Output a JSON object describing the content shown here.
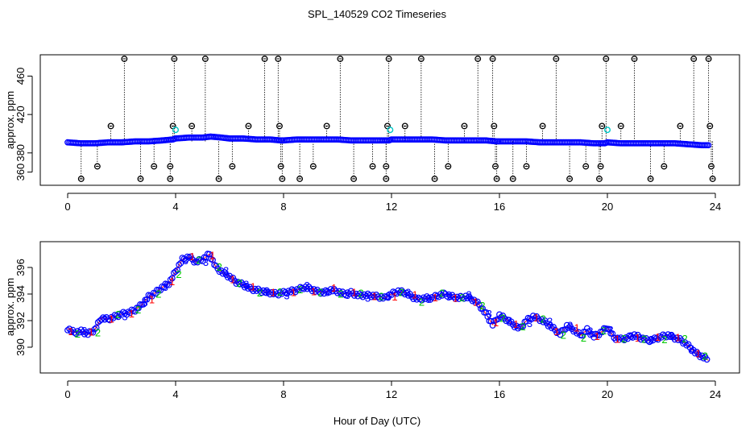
{
  "chart_data": [
    {
      "type": "scatter",
      "title": "SPL_140529  CO2 Timeseries",
      "ylabel": "approx. ppm",
      "xlabel": "",
      "xlim": [
        -1,
        25
      ],
      "ylim": [
        350,
        484
      ],
      "xticks": [
        0,
        4,
        8,
        12,
        16,
        20,
        24
      ],
      "yticks": [
        360,
        380,
        420,
        460
      ],
      "grid": false,
      "colors": {
        "baseline": "#0000ff",
        "outlier": "#000000",
        "flag": "#00c8c8",
        "stem": "#000000"
      },
      "baseline_points": [
        {
          "x": 0.0,
          "y": 391
        },
        {
          "x": 0.5,
          "y": 390
        },
        {
          "x": 1.0,
          "y": 390
        },
        {
          "x": 1.5,
          "y": 391
        },
        {
          "x": 2.0,
          "y": 391
        },
        {
          "x": 2.5,
          "y": 392
        },
        {
          "x": 3.0,
          "y": 392
        },
        {
          "x": 3.5,
          "y": 393
        },
        {
          "x": 3.9,
          "y": 394
        },
        {
          "x": 4.0,
          "y": 395
        },
        {
          "x": 4.5,
          "y": 396
        },
        {
          "x": 5.0,
          "y": 396
        },
        {
          "x": 5.3,
          "y": 397
        },
        {
          "x": 5.7,
          "y": 396
        },
        {
          "x": 6.0,
          "y": 395
        },
        {
          "x": 6.5,
          "y": 395
        },
        {
          "x": 7.0,
          "y": 394
        },
        {
          "x": 7.5,
          "y": 394
        },
        {
          "x": 7.9,
          "y": 393
        },
        {
          "x": 8.0,
          "y": 393
        },
        {
          "x": 8.5,
          "y": 394
        },
        {
          "x": 9.0,
          "y": 394
        },
        {
          "x": 9.5,
          "y": 394
        },
        {
          "x": 10.0,
          "y": 394
        },
        {
          "x": 10.5,
          "y": 393
        },
        {
          "x": 11.0,
          "y": 393
        },
        {
          "x": 11.5,
          "y": 393
        },
        {
          "x": 11.9,
          "y": 393
        },
        {
          "x": 12.0,
          "y": 394
        },
        {
          "x": 12.5,
          "y": 394
        },
        {
          "x": 13.0,
          "y": 394
        },
        {
          "x": 13.5,
          "y": 394
        },
        {
          "x": 14.0,
          "y": 393
        },
        {
          "x": 14.5,
          "y": 393
        },
        {
          "x": 15.0,
          "y": 393
        },
        {
          "x": 15.5,
          "y": 393
        },
        {
          "x": 15.9,
          "y": 392
        },
        {
          "x": 16.0,
          "y": 392
        },
        {
          "x": 16.5,
          "y": 392
        },
        {
          "x": 17.0,
          "y": 392
        },
        {
          "x": 17.5,
          "y": 391
        },
        {
          "x": 18.0,
          "y": 391
        },
        {
          "x": 18.5,
          "y": 391
        },
        {
          "x": 19.0,
          "y": 391
        },
        {
          "x": 19.5,
          "y": 390
        },
        {
          "x": 19.9,
          "y": 390
        },
        {
          "x": 20.0,
          "y": 391
        },
        {
          "x": 20.5,
          "y": 390
        },
        {
          "x": 21.0,
          "y": 390
        },
        {
          "x": 21.5,
          "y": 390
        },
        {
          "x": 22.0,
          "y": 390
        },
        {
          "x": 22.5,
          "y": 390
        },
        {
          "x": 23.0,
          "y": 389
        },
        {
          "x": 23.5,
          "y": 388
        },
        {
          "x": 23.8,
          "y": 388
        }
      ],
      "outliers": [
        {
          "x": 0.5,
          "y": 353
        },
        {
          "x": 1.1,
          "y": 366
        },
        {
          "x": 1.6,
          "y": 408
        },
        {
          "x": 2.1,
          "y": 478
        },
        {
          "x": 2.7,
          "y": 353
        },
        {
          "x": 3.2,
          "y": 366
        },
        {
          "x": 3.8,
          "y": 353
        },
        {
          "x": 3.8,
          "y": 366
        },
        {
          "x": 3.9,
          "y": 408
        },
        {
          "x": 3.95,
          "y": 478
        },
        {
          "x": 4.6,
          "y": 408
        },
        {
          "x": 5.1,
          "y": 478
        },
        {
          "x": 5.6,
          "y": 353
        },
        {
          "x": 6.1,
          "y": 366
        },
        {
          "x": 6.7,
          "y": 408
        },
        {
          "x": 7.3,
          "y": 478
        },
        {
          "x": 7.8,
          "y": 478
        },
        {
          "x": 7.85,
          "y": 408
        },
        {
          "x": 7.9,
          "y": 366
        },
        {
          "x": 7.95,
          "y": 353
        },
        {
          "x": 8.6,
          "y": 353
        },
        {
          "x": 9.1,
          "y": 366
        },
        {
          "x": 9.6,
          "y": 408
        },
        {
          "x": 10.1,
          "y": 478
        },
        {
          "x": 10.6,
          "y": 353
        },
        {
          "x": 11.3,
          "y": 366
        },
        {
          "x": 11.8,
          "y": 353
        },
        {
          "x": 11.8,
          "y": 366
        },
        {
          "x": 11.85,
          "y": 408
        },
        {
          "x": 11.9,
          "y": 478
        },
        {
          "x": 12.5,
          "y": 408
        },
        {
          "x": 13.1,
          "y": 478
        },
        {
          "x": 13.6,
          "y": 353
        },
        {
          "x": 14.1,
          "y": 366
        },
        {
          "x": 14.7,
          "y": 408
        },
        {
          "x": 15.2,
          "y": 478
        },
        {
          "x": 15.75,
          "y": 478
        },
        {
          "x": 15.8,
          "y": 408
        },
        {
          "x": 15.85,
          "y": 366
        },
        {
          "x": 15.9,
          "y": 353
        },
        {
          "x": 16.5,
          "y": 353
        },
        {
          "x": 17.0,
          "y": 366
        },
        {
          "x": 17.6,
          "y": 408
        },
        {
          "x": 18.1,
          "y": 478
        },
        {
          "x": 18.6,
          "y": 353
        },
        {
          "x": 19.2,
          "y": 366
        },
        {
          "x": 19.7,
          "y": 353
        },
        {
          "x": 19.75,
          "y": 366
        },
        {
          "x": 19.8,
          "y": 408
        },
        {
          "x": 19.95,
          "y": 478
        },
        {
          "x": 20.5,
          "y": 408
        },
        {
          "x": 21.0,
          "y": 478
        },
        {
          "x": 21.6,
          "y": 353
        },
        {
          "x": 22.1,
          "y": 366
        },
        {
          "x": 22.7,
          "y": 408
        },
        {
          "x": 23.2,
          "y": 478
        },
        {
          "x": 23.75,
          "y": 478
        },
        {
          "x": 23.8,
          "y": 408
        },
        {
          "x": 23.85,
          "y": 366
        },
        {
          "x": 23.9,
          "y": 353
        }
      ],
      "flagged": [
        {
          "x": 4.0,
          "y": 404
        },
        {
          "x": 11.95,
          "y": 404
        },
        {
          "x": 20.0,
          "y": 404
        }
      ]
    },
    {
      "type": "scatter",
      "title": "",
      "ylabel": "approx. ppm",
      "xlabel": "Hour of Day (UTC)",
      "xlim": [
        -1,
        25
      ],
      "ylim": [
        388.5,
        397.6
      ],
      "xticks": [
        0,
        4,
        8,
        12,
        16,
        20,
        24
      ],
      "yticks": [
        390,
        392,
        394,
        396
      ],
      "grid": false,
      "colors": {
        "circles": "#0000ff",
        "line": "#ff0000",
        "digit1": "#ff0000",
        "digit2": "#00c800",
        "digit3": "#0000ff"
      },
      "series": [
        {
          "x": [
            0.0,
            0.25,
            0.5,
            0.75,
            1.0,
            1.25,
            1.5,
            1.75,
            2.0,
            2.25,
            2.5,
            2.75,
            3.0,
            3.25,
            3.5,
            3.75,
            4.0,
            4.25,
            4.5,
            4.75,
            5.0,
            5.25,
            5.5,
            5.75,
            6.0,
            6.25,
            6.5,
            6.75,
            7.0,
            7.25,
            7.5,
            7.75,
            8.0,
            8.25,
            8.5,
            8.75,
            9.0,
            9.25,
            9.5,
            9.75,
            10.0,
            10.25,
            10.5,
            10.75,
            11.0,
            11.25,
            11.5,
            11.75,
            12.0,
            12.25,
            12.5,
            12.75,
            13.0,
            13.25,
            13.5,
            13.75,
            14.0,
            14.25,
            14.5,
            14.75,
            15.0,
            15.25,
            15.5,
            15.75,
            16.0,
            16.25,
            16.5,
            16.75,
            17.0,
            17.25,
            17.5,
            17.75,
            18.0,
            18.25,
            18.5,
            18.75,
            19.0,
            19.25,
            19.5,
            19.75,
            20.0,
            20.25,
            20.5,
            20.75,
            21.0,
            21.25,
            21.5,
            21.75,
            22.0,
            22.25,
            22.5,
            22.75,
            23.0,
            23.25,
            23.5,
            23.75
          ],
          "values": [
            391.4,
            391.1,
            391.2,
            391.0,
            391.3,
            392.2,
            392.1,
            392.3,
            392.5,
            392.6,
            392.8,
            393.2,
            393.8,
            394.1,
            394.5,
            394.8,
            395.7,
            396.6,
            396.8,
            396.4,
            396.6,
            397.0,
            396.0,
            395.6,
            395.3,
            394.9,
            394.7,
            394.4,
            394.3,
            394.2,
            394.1,
            394.0,
            394.1,
            394.2,
            394.3,
            394.5,
            394.4,
            394.2,
            394.1,
            394.3,
            394.2,
            394.0,
            394.1,
            393.9,
            393.9,
            393.9,
            393.8,
            393.7,
            394.0,
            394.2,
            394.1,
            393.8,
            393.6,
            393.7,
            393.7,
            393.9,
            394.0,
            393.8,
            393.7,
            393.8,
            393.6,
            393.2,
            392.5,
            391.7,
            392.4,
            392.1,
            391.7,
            391.4,
            392.0,
            392.3,
            392.1,
            391.8,
            391.4,
            391.0,
            391.6,
            391.3,
            390.9,
            391.3,
            390.8,
            391.1,
            391.5,
            390.7,
            390.6,
            390.7,
            390.9,
            390.7,
            390.5,
            390.6,
            390.8,
            390.9,
            390.7,
            390.5,
            390.1,
            389.6,
            389.3,
            389.0
          ]
        }
      ]
    }
  ]
}
